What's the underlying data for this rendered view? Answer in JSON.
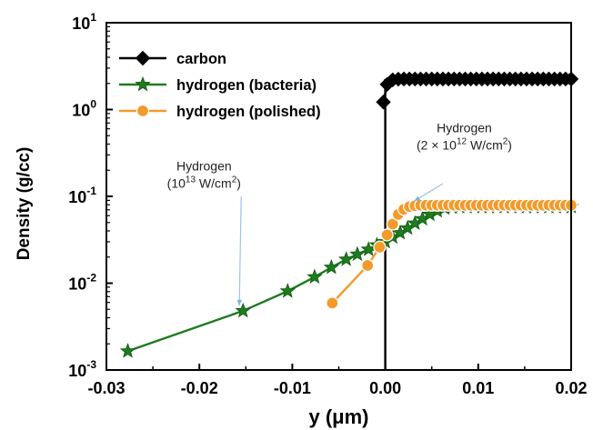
{
  "chart_data": {
    "type": "scatter",
    "title": "",
    "xlabel": "y (μm)",
    "ylabel": "Density (g/cc)",
    "xlim": [
      -0.03,
      0.02
    ],
    "ylim": [
      0.001,
      10
    ],
    "yscale": "log",
    "x_ticks": [
      "-0.03",
      "-0.02",
      "-0.01",
      "0.00",
      "0.01",
      "0.02"
    ],
    "y_ticks": [
      {
        "base": "10",
        "exp": "-3"
      },
      {
        "base": "10",
        "exp": "-2"
      },
      {
        "base": "10",
        "exp": "-1"
      },
      {
        "base": "10",
        "exp": "0"
      },
      {
        "base": "10",
        "exp": "1"
      }
    ],
    "legend_position": "top-left",
    "grid": false,
    "series": [
      {
        "name": "carbon",
        "color": "#000000",
        "marker": "diamond",
        "x": [
          -0.0002,
          0.0002,
          0.0008,
          0.0014,
          0.002,
          0.0026,
          0.0032,
          0.0038,
          0.0044,
          0.005,
          0.0056,
          0.0062,
          0.0068,
          0.0074,
          0.008,
          0.0086,
          0.0092,
          0.0098,
          0.0104,
          0.011,
          0.0116,
          0.0122,
          0.0128,
          0.0134,
          0.014,
          0.0146,
          0.0152,
          0.0158,
          0.0164,
          0.017,
          0.0176,
          0.0182,
          0.0188,
          0.0194,
          0.02
        ],
        "y": [
          1.22,
          1.95,
          2.2,
          2.24,
          2.25,
          2.25,
          2.25,
          2.25,
          2.25,
          2.25,
          2.25,
          2.25,
          2.25,
          2.25,
          2.25,
          2.25,
          2.25,
          2.25,
          2.25,
          2.25,
          2.25,
          2.25,
          2.25,
          2.25,
          2.25,
          2.25,
          2.25,
          2.25,
          2.25,
          2.25,
          2.25,
          2.25,
          2.25,
          2.25,
          2.25
        ]
      },
      {
        "name": "hydrogen (bacteria)",
        "color": "#1e7b1e",
        "marker": "star",
        "x": [
          -0.0277,
          -0.0153,
          -0.0105,
          -0.0076,
          -0.0058,
          -0.0042,
          -0.003,
          -0.0018,
          -0.0009,
          0.0,
          0.0008,
          0.0016,
          0.0024,
          0.0032,
          0.004,
          0.0048,
          0.0056,
          0.0064,
          0.0072,
          0.008,
          0.0088,
          0.0096,
          0.0104,
          0.0112,
          0.012,
          0.0128,
          0.0136,
          0.0144,
          0.0152,
          0.016,
          0.0168,
          0.0176,
          0.0184,
          0.0192,
          0.02
        ],
        "y": [
          0.00165,
          0.0048,
          0.0081,
          0.0118,
          0.0152,
          0.0188,
          0.0215,
          0.0245,
          0.0275,
          0.03,
          0.034,
          0.038,
          0.043,
          0.049,
          0.055,
          0.062,
          0.068,
          0.073,
          0.075,
          0.076,
          0.076,
          0.076,
          0.076,
          0.076,
          0.076,
          0.076,
          0.076,
          0.076,
          0.076,
          0.076,
          0.076,
          0.076,
          0.076,
          0.076,
          0.076
        ]
      },
      {
        "name": "hydrogen (polished)",
        "color": "#f39a2a",
        "marker": "circle",
        "x": [
          -0.0057,
          -0.0019,
          -0.0006,
          0.0002,
          0.0008,
          0.0014,
          0.002,
          0.0026,
          0.0032,
          0.0038,
          0.0044,
          0.005,
          0.0056,
          0.0062,
          0.0068,
          0.0074,
          0.008,
          0.0086,
          0.0092,
          0.0098,
          0.0104,
          0.011,
          0.0116,
          0.0122,
          0.0128,
          0.0134,
          0.014,
          0.0146,
          0.0152,
          0.0158,
          0.0164,
          0.017,
          0.0176,
          0.0182,
          0.0188,
          0.0194,
          0.02
        ],
        "y": [
          0.0059,
          0.016,
          0.026,
          0.036,
          0.048,
          0.062,
          0.071,
          0.076,
          0.078,
          0.079,
          0.079,
          0.079,
          0.079,
          0.079,
          0.079,
          0.079,
          0.079,
          0.079,
          0.079,
          0.079,
          0.079,
          0.079,
          0.079,
          0.079,
          0.079,
          0.079,
          0.079,
          0.079,
          0.079,
          0.079,
          0.079,
          0.079,
          0.079,
          0.079,
          0.079,
          0.079,
          0.079
        ]
      }
    ],
    "vertical_line": {
      "x": 0.0,
      "y_from": 0.001,
      "y_to": 2.25,
      "color": "#000000"
    },
    "annotations": [
      {
        "lines": [
          {
            "text": "Hydrogen"
          },
          {
            "base": "(10",
            "sup": "13",
            "rest": " W/cm",
            "sup2": "2",
            "end": ")"
          }
        ],
        "anchor_x": -0.0195,
        "anchor_y": 0.2,
        "arrow_from": [
          -0.0155,
          0.1
        ],
        "arrow_to": [
          -0.0157,
          0.0055
        ]
      },
      {
        "lines": [
          {
            "text": "Hydrogen"
          },
          {
            "base": "(2 × 10",
            "sup": "12",
            "rest": " W/cm",
            "sup2": "2",
            "end": ")"
          }
        ],
        "anchor_x": 0.0085,
        "anchor_y": 0.55,
        "arrow_from": [
          0.0062,
          0.14
        ],
        "arrow_to": [
          0.0031,
          0.088
        ]
      }
    ]
  }
}
